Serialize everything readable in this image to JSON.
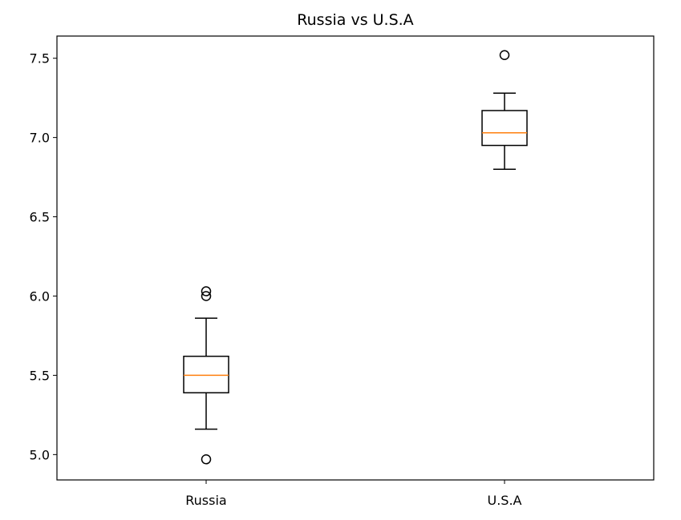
{
  "chart_data": {
    "type": "boxplot",
    "title": "Russia vs U.S.A",
    "xlabel": "",
    "ylabel": "",
    "categories": [
      "Russia",
      "U.S.A"
    ],
    "ylim": [
      4.84,
      7.64
    ],
    "yticks": [
      5.0,
      5.5,
      6.0,
      6.5,
      7.0,
      7.5
    ],
    "ytick_labels": [
      "5.0",
      "5.5",
      "6.0",
      "6.5",
      "7.0",
      "7.5"
    ],
    "grid": false,
    "boxes": [
      {
        "category": "Russia",
        "whisker_low": 5.16,
        "q1": 5.39,
        "median": 5.5,
        "q3": 5.62,
        "whisker_high": 5.86,
        "outliers": [
          4.97,
          6.0,
          6.03
        ]
      },
      {
        "category": "U.S.A",
        "whisker_low": 6.8,
        "q1": 6.95,
        "median": 7.03,
        "q3": 7.17,
        "whisker_high": 7.28,
        "outliers": [
          7.52
        ]
      }
    ],
    "colors": {
      "box": "#000000",
      "median": "#ff7f0e",
      "flier": "#000000"
    }
  }
}
